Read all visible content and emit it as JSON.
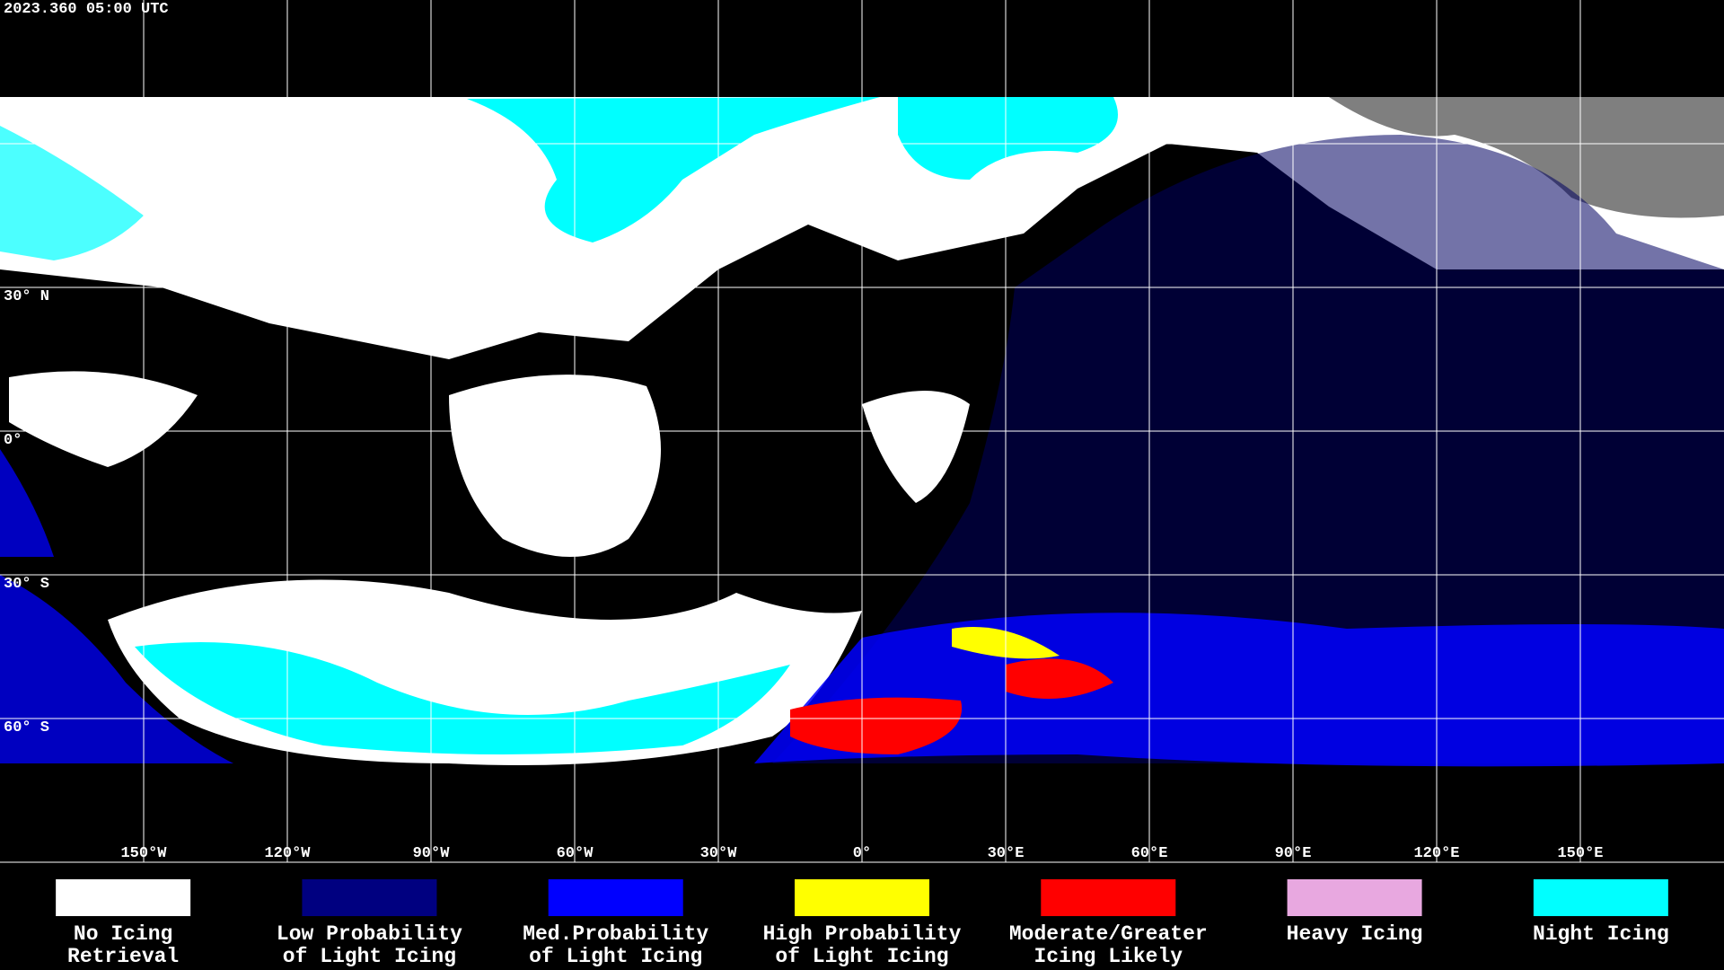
{
  "header": {
    "timestamp": "2023.360 05:00 UTC"
  },
  "map": {
    "lat_labels": [
      "30° N",
      "0°",
      "30° S",
      "60° S"
    ],
    "lon_labels": [
      "150°W",
      "120°W",
      "90°W",
      "60°W",
      "30°W",
      "0°",
      "30°E",
      "60°E",
      "90°E",
      "120°E",
      "150°E"
    ]
  },
  "legend": {
    "items": [
      {
        "lines": [
          "No Icing",
          "Retrieval"
        ],
        "color": "#ffffff"
      },
      {
        "lines": [
          "Low Probability",
          "of Light Icing"
        ],
        "color": "#000080"
      },
      {
        "lines": [
          "Med.Probability",
          "of Light Icing"
        ],
        "color": "#0000ff"
      },
      {
        "lines": [
          "High Probability",
          "of Light Icing"
        ],
        "color": "#ffff00"
      },
      {
        "lines": [
          "Moderate/Greater",
          "Icing Likely"
        ],
        "color": "#ff0000"
      },
      {
        "lines": [
          "Heavy Icing"
        ],
        "color": "#e8a8e0"
      },
      {
        "lines": [
          "Night Icing"
        ],
        "color": "#00ffff"
      }
    ]
  }
}
